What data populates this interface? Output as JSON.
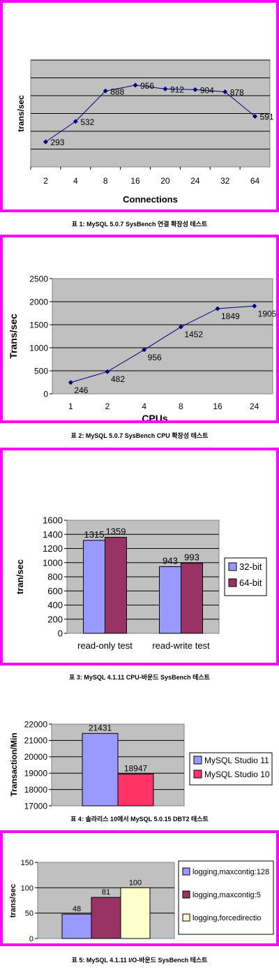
{
  "captions": [
    "표 1: MySQL 5.0.7 SysBench 연결 확장성 테스트",
    "표 2: MySQL 5.0.7 SysBench CPU 확장성 테스트",
    "표 3: MySQL 4.1.11 CPU-바운드 SysBench 테스트",
    "표 4: 솔라리스 10에서 MySQL 5.0.15 DBT2 테스트",
    "표 5: MySQL 4.1.11 I/O-바운드 SysBench 테스트"
  ],
  "colors": {
    "frame": "#ff00ff",
    "plot_bg": "#c0c0c0",
    "line": "#000080",
    "bar_blue": "#9999ff",
    "bar_maroon": "#993366",
    "bar_red": "#ff3366",
    "bar_cream": "#ffffcc"
  },
  "chart_data": [
    {
      "type": "line",
      "title": "",
      "xlabel": "Connections",
      "ylabel": "trans/sec",
      "categories": [
        "2",
        "4",
        "8",
        "16",
        "20",
        "24",
        "32",
        "64"
      ],
      "values": [
        293,
        532,
        888,
        956,
        912,
        904,
        878,
        591
      ],
      "ylim": [
        0,
        1250
      ],
      "y_ticks_shown": false,
      "grid": true
    },
    {
      "type": "line",
      "title": "",
      "xlabel": "CPUs",
      "ylabel": "Trans/sec",
      "categories": [
        "1",
        "2",
        "4",
        "8",
        "16",
        "24"
      ],
      "values": [
        246,
        482,
        956,
        1452,
        1849,
        1905
      ],
      "ylim": [
        0,
        2500
      ],
      "y_ticks": [
        "0",
        "500",
        "1000",
        "1500",
        "2000",
        "2500"
      ],
      "grid": true
    },
    {
      "type": "bar",
      "title": "",
      "xlabel": "",
      "ylabel": "tran/sec",
      "categories": [
        "read-only test",
        "read-write test"
      ],
      "series": [
        {
          "name": "32-bit",
          "values": [
            1315,
            943
          ]
        },
        {
          "name": "64-bit",
          "values": [
            1359,
            993
          ]
        }
      ],
      "ylim": [
        0,
        1600
      ],
      "y_ticks": [
        "0",
        "200",
        "400",
        "600",
        "800",
        "1000",
        "1200",
        "1400",
        "1600"
      ],
      "legend": "right",
      "grid": true
    },
    {
      "type": "bar",
      "title": "",
      "xlabel": "",
      "ylabel": "Transaction/Min",
      "categories": [
        ""
      ],
      "series": [
        {
          "name": "MySQL Studio 11",
          "values": [
            21431
          ]
        },
        {
          "name": "MySQL Studio 10",
          "values": [
            18947
          ]
        }
      ],
      "ylim": [
        17000,
        22000
      ],
      "y_ticks": [
        "17000",
        "18000",
        "19000",
        "20000",
        "21000",
        "22000"
      ],
      "legend": "right",
      "grid": true
    },
    {
      "type": "bar",
      "title": "",
      "xlabel": "",
      "ylabel": "trans/sec",
      "categories": [
        ""
      ],
      "series": [
        {
          "name": "logging,maxcontig:128",
          "values": [
            48
          ]
        },
        {
          "name": "logging,maxcontig:5",
          "values": [
            81
          ]
        },
        {
          "name": "logging,forcedirectio",
          "values": [
            100
          ]
        }
      ],
      "ylim": [
        0,
        150
      ],
      "y_ticks": [
        "0",
        "50",
        "100",
        "150"
      ],
      "legend": "right",
      "grid": true
    }
  ]
}
